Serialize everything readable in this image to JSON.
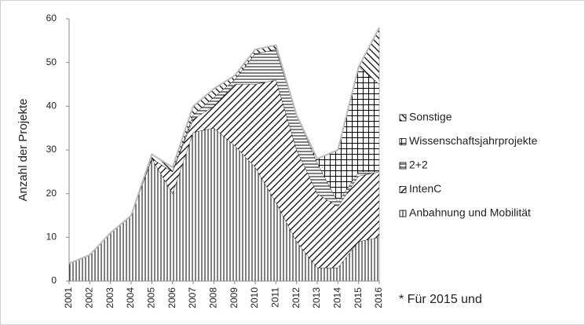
{
  "chart_data": {
    "type": "stacked_area",
    "y_label": "Anzahl der Projekte",
    "annotation": "* Für 2015 und",
    "x": [
      "2001",
      "2002",
      "2003",
      "2004",
      "2005",
      "2006",
      "2007",
      "2008",
      "2009",
      "2010",
      "2011",
      "2012",
      "2013",
      "2014",
      "2015",
      "2016"
    ],
    "ylim": [
      0,
      60
    ],
    "yticks": [
      0,
      10,
      20,
      30,
      40,
      50,
      60
    ],
    "series": [
      {
        "name": "Anbahnung und Mobilität",
        "color": "#000000",
        "pattern": "vertical",
        "values": [
          4,
          6,
          11,
          15,
          28,
          20,
          34,
          35,
          31,
          26,
          18,
          9,
          3,
          3,
          9,
          10
        ]
      },
      {
        "name": "IntenC",
        "color": "#000000",
        "pattern": "backslash",
        "values": [
          0,
          0,
          0,
          0,
          0,
          5,
          3,
          5,
          14,
          19,
          28,
          21,
          17,
          14,
          15,
          15
        ]
      },
      {
        "name": "2+2",
        "color": "#000000",
        "pattern": "horizontal",
        "values": [
          0,
          0,
          0,
          0,
          0,
          0,
          1,
          2,
          1,
          7,
          7,
          8,
          7,
          1,
          1,
          0
        ]
      },
      {
        "name": "Wissenschaftsjahrprojekte",
        "color": "#000000",
        "pattern": "grid",
        "values": [
          0,
          0,
          0,
          0,
          0,
          0,
          0,
          0,
          0,
          0,
          0,
          0,
          1,
          12,
          24,
          20
        ]
      },
      {
        "name": "Sonstige",
        "color": "#000000",
        "pattern": "slash",
        "values": [
          0,
          0,
          0,
          0,
          1,
          1,
          2,
          2,
          1,
          1,
          1,
          0,
          0,
          0,
          0,
          13
        ]
      }
    ]
  }
}
